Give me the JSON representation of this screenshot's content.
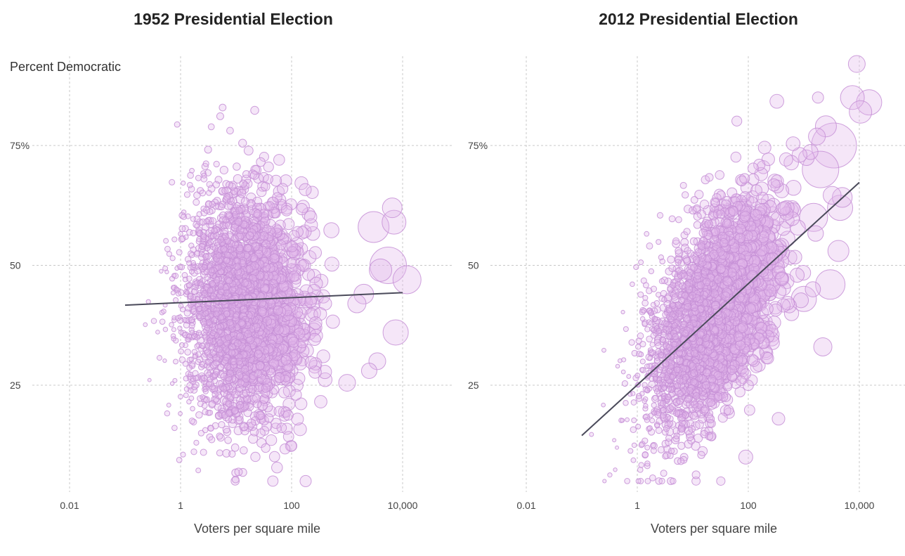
{
  "chart_data": [
    {
      "type": "scatter",
      "title": "1952 Presidential Election",
      "ylabel": "Percent Democratic",
      "xlabel": "Voters per square mile",
      "x_scale": "log",
      "x_ticks": [
        0.01,
        1,
        100,
        10000
      ],
      "x_tick_labels": [
        "0.01",
        "1",
        "100",
        "10,000"
      ],
      "xlim": [
        0.01,
        10000
      ],
      "y_ticks": [
        25,
        50,
        75
      ],
      "y_tick_labels": [
        "25",
        "50",
        "75%"
      ],
      "ylim": [
        4,
        93
      ],
      "grid": true,
      "trend_line": {
        "x": [
          0.1,
          10000
        ],
        "y": [
          41.7,
          44.3
        ]
      },
      "cloud": {
        "x_log_center": 1.1,
        "x_log_spread": 0.55,
        "y_center": 41,
        "y_spread": 12
      },
      "large_points": [
        {
          "x": 3000,
          "y": 58,
          "size": 22
        },
        {
          "x": 5500,
          "y": 50,
          "size": 26
        },
        {
          "x": 12000,
          "y": 47,
          "size": 20
        },
        {
          "x": 7000,
          "y": 59,
          "size": 17
        },
        {
          "x": 7500,
          "y": 36,
          "size": 18
        },
        {
          "x": 6500,
          "y": 62,
          "size": 14
        },
        {
          "x": 1500,
          "y": 42,
          "size": 13
        },
        {
          "x": 3500,
          "y": 30,
          "size": 12
        },
        {
          "x": 1000,
          "y": 25.5,
          "size": 12
        },
        {
          "x": 2500,
          "y": 28,
          "size": 11
        },
        {
          "x": 2000,
          "y": 44,
          "size": 14
        },
        {
          "x": 4000,
          "y": 49,
          "size": 16
        }
      ]
    },
    {
      "type": "scatter",
      "title": "2012 Presidential Election",
      "xlabel": "Voters per square mile",
      "x_scale": "log",
      "x_ticks": [
        0.01,
        1,
        100,
        10000
      ],
      "x_tick_labels": [
        "0.01",
        "1",
        "100",
        "10,000"
      ],
      "xlim": [
        0.01,
        10000
      ],
      "y_ticks": [
        25,
        50,
        75
      ],
      "y_tick_labels": [
        "25",
        "50",
        "75%"
      ],
      "ylim": [
        4,
        93
      ],
      "grid": true,
      "trend_line": {
        "x": [
          0.1,
          10000
        ],
        "y": [
          14.5,
          67.3
        ]
      },
      "cloud": {
        "x_log_center": 1.3,
        "x_log_spread": 0.6,
        "y_center": 40,
        "y_spread": 12
      },
      "large_points": [
        {
          "x": 3500,
          "y": 75,
          "size": 32
        },
        {
          "x": 2000,
          "y": 70,
          "size": 26
        },
        {
          "x": 1500,
          "y": 60,
          "size": 20
        },
        {
          "x": 4500,
          "y": 62,
          "size": 18
        },
        {
          "x": 15000,
          "y": 84,
          "size": 18
        },
        {
          "x": 10500,
          "y": 82,
          "size": 16
        },
        {
          "x": 7500,
          "y": 85,
          "size": 17
        },
        {
          "x": 9000,
          "y": 92,
          "size": 12
        },
        {
          "x": 2500,
          "y": 79,
          "size": 15
        },
        {
          "x": 3000,
          "y": 46,
          "size": 21
        },
        {
          "x": 1000,
          "y": 43,
          "size": 18
        },
        {
          "x": 4200,
          "y": 53,
          "size": 15
        },
        {
          "x": 2200,
          "y": 33,
          "size": 13
        },
        {
          "x": 90,
          "y": 10,
          "size": 10
        },
        {
          "x": 350,
          "y": 18,
          "size": 9
        },
        {
          "x": 1800,
          "y": 85,
          "size": 8
        }
      ]
    }
  ]
}
